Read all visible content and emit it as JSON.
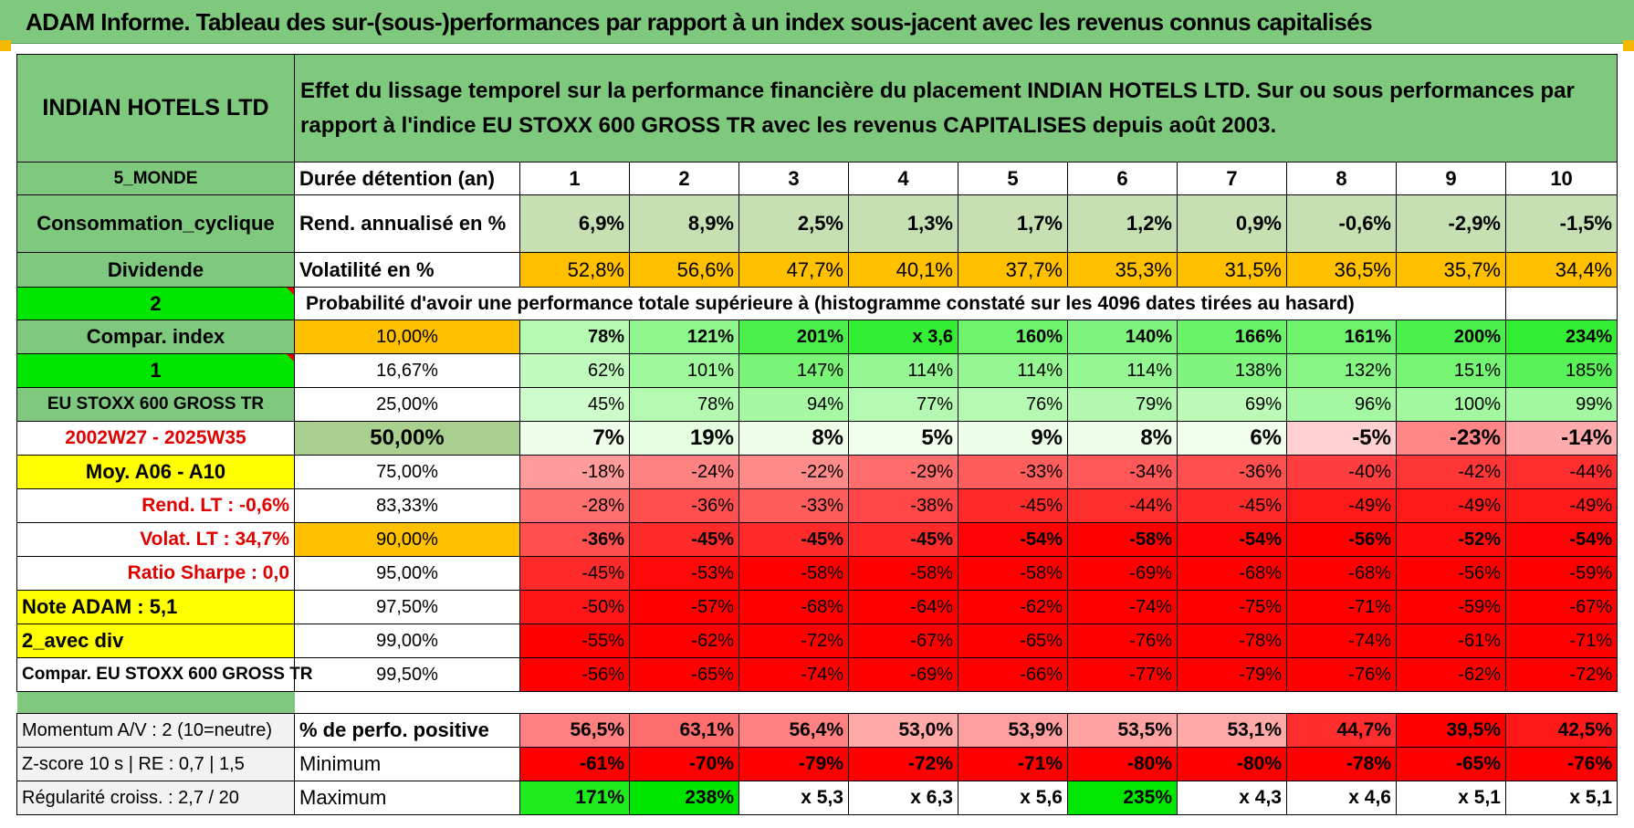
{
  "title": "ADAM Informe. Tableau des sur-(sous-)performances par rapport à un index sous-jacent avec les revenus connus capitalisés",
  "header": {
    "asset": "INDIAN HOTELS LTD",
    "description": "Effet du lissage temporel sur la performance financière du placement INDIAN HOTELS LTD. Sur ou sous performances par rapport à l'indice EU STOXX 600 GROSS TR avec les revenus CAPITALISES depuis août 2003."
  },
  "side_labels": {
    "region": "5_MONDE",
    "sector": "Consommation_cyclique",
    "dividend": "Dividende",
    "code_2": "2",
    "compar_index": "Compar. index",
    "code_1": "1",
    "index_name": "EU STOXX 600 GROSS TR",
    "period": "2002W27 - 2025W35",
    "moy": "Moy. A06 - A10",
    "rend_lt": "Rend. LT :    -0,6%",
    "volat_lt": "Volat. LT :    34,7%",
    "sharpe": "Ratio Sharpe :     0,0",
    "note": "Note ADAM : 5,1",
    "avec_div": "2_avec div",
    "compar_full": "Compar. EU STOXX 600 GROSS TR",
    "momentum": "Momentum A/V : 2 (10=neutre)",
    "zscore": "Z-score 10 s | RE : 0,7 | 1,5",
    "regularite": "Régularité croiss. : 2,7 / 20"
  },
  "row_labels": {
    "duree": "Durée détention (an)",
    "rend": "Rend. annualisé en %",
    "vol": "Volatilité en %",
    "proba": "Probabilité d'avoir une performance totale supérieure à (histogramme constaté sur les 4096 dates tirées au hasard)",
    "positive": "% de perfo. positive",
    "minimum": "Minimum",
    "maximum": "Maximum"
  },
  "years": [
    "1",
    "2",
    "3",
    "4",
    "5",
    "6",
    "7",
    "8",
    "9",
    "10"
  ],
  "rend": [
    "6,9%",
    "8,9%",
    "2,5%",
    "1,3%",
    "1,7%",
    "1,2%",
    "0,9%",
    "-0,6%",
    "-2,9%",
    "-1,5%"
  ],
  "vol": [
    "52,8%",
    "56,6%",
    "47,7%",
    "40,1%",
    "37,7%",
    "35,3%",
    "31,5%",
    "36,5%",
    "35,7%",
    "34,4%"
  ],
  "percentile_rows": [
    {
      "p": "10,00%",
      "v": [
        "78%",
        "121%",
        "201%",
        "x 3,6",
        "160%",
        "140%",
        "166%",
        "161%",
        "200%",
        "234%"
      ]
    },
    {
      "p": "16,67%",
      "v": [
        "62%",
        "101%",
        "147%",
        "114%",
        "114%",
        "114%",
        "138%",
        "132%",
        "151%",
        "185%"
      ]
    },
    {
      "p": "25,00%",
      "v": [
        "45%",
        "78%",
        "94%",
        "77%",
        "76%",
        "79%",
        "69%",
        "96%",
        "100%",
        "99%"
      ]
    },
    {
      "p": "50,00%",
      "v": [
        "7%",
        "19%",
        "8%",
        "5%",
        "9%",
        "8%",
        "6%",
        "-5%",
        "-23%",
        "-14%"
      ]
    },
    {
      "p": "75,00%",
      "v": [
        "-18%",
        "-24%",
        "-22%",
        "-29%",
        "-33%",
        "-34%",
        "-36%",
        "-40%",
        "-42%",
        "-44%"
      ]
    },
    {
      "p": "83,33%",
      "v": [
        "-28%",
        "-36%",
        "-33%",
        "-38%",
        "-45%",
        "-44%",
        "-45%",
        "-49%",
        "-49%",
        "-49%"
      ]
    },
    {
      "p": "90,00%",
      "v": [
        "-36%",
        "-45%",
        "-45%",
        "-45%",
        "-54%",
        "-58%",
        "-54%",
        "-56%",
        "-52%",
        "-54%"
      ]
    },
    {
      "p": "95,00%",
      "v": [
        "-45%",
        "-53%",
        "-58%",
        "-58%",
        "-58%",
        "-69%",
        "-68%",
        "-68%",
        "-56%",
        "-59%"
      ]
    },
    {
      "p": "97,50%",
      "v": [
        "-50%",
        "-57%",
        "-68%",
        "-64%",
        "-62%",
        "-74%",
        "-75%",
        "-71%",
        "-59%",
        "-67%"
      ]
    },
    {
      "p": "99,00%",
      "v": [
        "-55%",
        "-62%",
        "-72%",
        "-67%",
        "-65%",
        "-76%",
        "-78%",
        "-74%",
        "-61%",
        "-71%"
      ]
    },
    {
      "p": "99,50%",
      "v": [
        "-56%",
        "-65%",
        "-74%",
        "-69%",
        "-66%",
        "-77%",
        "-79%",
        "-76%",
        "-62%",
        "-72%"
      ]
    }
  ],
  "positive": [
    "56,5%",
    "63,1%",
    "56,4%",
    "53,0%",
    "53,9%",
    "53,5%",
    "53,1%",
    "44,7%",
    "39,5%",
    "42,5%"
  ],
  "minimum": [
    "-61%",
    "-70%",
    "-79%",
    "-72%",
    "-71%",
    "-80%",
    "-80%",
    "-78%",
    "-65%",
    "-76%"
  ],
  "maximum": [
    "171%",
    "238%",
    "x 5,3",
    "x 6,3",
    "x 5,6",
    "235%",
    "x 4,3",
    "x 4,6",
    "x 5,1",
    "x 5,1"
  ],
  "colors": {
    "green_header": "#7fc97f",
    "bright_green": "#00e600",
    "yellow": "#ffff00",
    "orange": "#ffc000",
    "red": "#ff0000",
    "light_green_rend": "#c6e0b4"
  }
}
